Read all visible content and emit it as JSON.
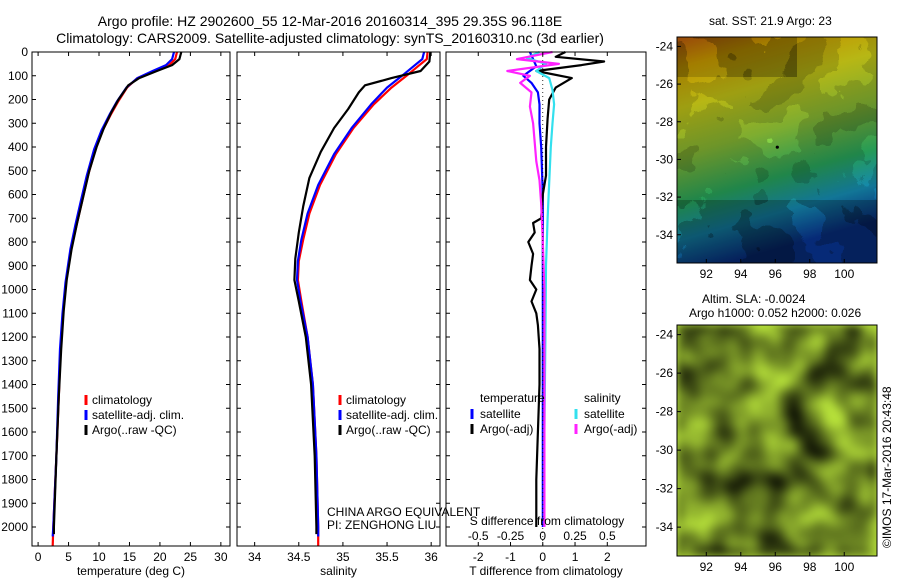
{
  "header": {
    "title_line1": "Argo profile: HZ 2902600_55 12-Mar-2016 20160314_395 29.35S 96.118E",
    "title_line2": "Climatology: CARS2009. Satellite-adjusted climatology: synTS_20160310.nc (3d earlier)"
  },
  "colors": {
    "climatology": "#ff0000",
    "satellite": "#0000ff",
    "argo": "#000000",
    "sat_salinity": "#33e0ee",
    "argo_salinity": "#ff22ff"
  },
  "chart_data": [
    {
      "type": "line",
      "xlabel": "temperature (deg C)",
      "xlim": [
        -1,
        31.5
      ],
      "ylim": [
        0,
        2080
      ],
      "xticks": [
        "0",
        "5",
        "10",
        "15",
        "20",
        "25",
        "30"
      ],
      "xtick_values": [
        0,
        5,
        10,
        15,
        20,
        25,
        30
      ],
      "yticks": [
        "0",
        "100",
        "200",
        "300",
        "400",
        "500",
        "600",
        "700",
        "800",
        "900",
        "1000",
        "1100",
        "1200",
        "1300",
        "1400",
        "1500",
        "1600",
        "1700",
        "1800",
        "1900",
        "2000"
      ],
      "ytick_values": [
        0,
        100,
        200,
        300,
        400,
        500,
        600,
        700,
        800,
        900,
        1000,
        1100,
        1200,
        1300,
        1400,
        1500,
        1600,
        1700,
        1800,
        1900,
        2000
      ],
      "legend": [
        "climatology",
        "satellite-adj. clim.",
        "Argo(..raw -QC)"
      ],
      "series": [
        {
          "name": "climatology",
          "color": "#ff0000",
          "points": [
            [
              22.8,
              0
            ],
            [
              22.5,
              30
            ],
            [
              21.5,
              55
            ],
            [
              19,
              80
            ],
            [
              16.3,
              110
            ],
            [
              14.6,
              150
            ],
            [
              13.1,
              210
            ],
            [
              12,
              260
            ],
            [
              10.6,
              330
            ],
            [
              9.4,
              410
            ],
            [
              8.2,
              520
            ],
            [
              7.2,
              630
            ],
            [
              6.3,
              730
            ],
            [
              5.4,
              830
            ],
            [
              4.6,
              970
            ],
            [
              4.1,
              1100
            ],
            [
              3.7,
              1250
            ],
            [
              3.4,
              1450
            ],
            [
              3.0,
              1700
            ],
            [
              2.5,
              2000
            ],
            [
              2.4,
              2080
            ]
          ]
        },
        {
          "name": "satellite-adj. clim.",
          "color": "#0000ff",
          "points": [
            [
              22.3,
              0
            ],
            [
              22,
              30
            ],
            [
              21,
              55
            ],
            [
              18.8,
              80
            ],
            [
              16.3,
              110
            ],
            [
              14.5,
              150
            ],
            [
              12.9,
              210
            ],
            [
              11.8,
              260
            ],
            [
              10.4,
              330
            ],
            [
              9.2,
              410
            ],
            [
              8,
              520
            ],
            [
              7,
              630
            ],
            [
              6.1,
              730
            ],
            [
              5.3,
              830
            ],
            [
              4.5,
              970
            ],
            [
              4,
              1100
            ],
            [
              3.6,
              1250
            ],
            [
              3.3,
              1450
            ],
            [
              3,
              1700
            ],
            [
              2.5,
              2000
            ],
            [
              2.4,
              2040
            ]
          ]
        },
        {
          "name": "Argo(..raw -QC)",
          "color": "#000000",
          "points": [
            [
              23.5,
              0
            ],
            [
              23.2,
              30
            ],
            [
              22,
              55
            ],
            [
              19.5,
              80
            ],
            [
              16.6,
              110
            ],
            [
              14.8,
              140
            ],
            [
              13.2,
              200
            ],
            [
              12.1,
              250
            ],
            [
              10.8,
              320
            ],
            [
              9.6,
              400
            ],
            [
              8.4,
              500
            ],
            [
              7.4,
              610
            ],
            [
              6.4,
              720
            ],
            [
              5.5,
              830
            ],
            [
              4.7,
              960
            ],
            [
              4.2,
              1090
            ],
            [
              3.8,
              1250
            ],
            [
              3.4,
              1450
            ],
            [
              3,
              1700
            ],
            [
              2.6,
              2000
            ],
            [
              2.6,
              2030
            ]
          ]
        }
      ]
    },
    {
      "type": "line",
      "xlabel": "salinity",
      "xlim": [
        33.8,
        36.1
      ],
      "ylim": [
        0,
        2080
      ],
      "xticks": [
        "34",
        "34.5",
        "35",
        "35.5",
        "36"
      ],
      "xtick_values": [
        34,
        34.5,
        35,
        35.5,
        36
      ],
      "legend": [
        "climatology",
        "satellite-adj. clim.",
        "Argo(..raw -QC)"
      ],
      "annotation_lines": [
        "CHINA ARGO EQUIVALENT",
        "PI: ZENGHONG LIU"
      ],
      "series": [
        {
          "name": "climatology",
          "color": "#ff0000",
          "points": [
            [
              35.96,
              0
            ],
            [
              35.95,
              30
            ],
            [
              35.85,
              60
            ],
            [
              35.72,
              100
            ],
            [
              35.55,
              150
            ],
            [
              35.35,
              220
            ],
            [
              35.12,
              320
            ],
            [
              34.92,
              430
            ],
            [
              34.74,
              560
            ],
            [
              34.62,
              680
            ],
            [
              34.55,
              790
            ],
            [
              34.5,
              880
            ],
            [
              34.49,
              960
            ],
            [
              34.53,
              1050
            ],
            [
              34.6,
              1200
            ],
            [
              34.66,
              1400
            ],
            [
              34.7,
              1700
            ],
            [
              34.72,
              2000
            ],
            [
              34.72,
              2080
            ]
          ]
        },
        {
          "name": "satellite-adj. clim.",
          "color": "#0000ff",
          "points": [
            [
              35.92,
              0
            ],
            [
              35.9,
              30
            ],
            [
              35.8,
              60
            ],
            [
              35.67,
              100
            ],
            [
              35.5,
              150
            ],
            [
              35.32,
              220
            ],
            [
              35.1,
              320
            ],
            [
              34.9,
              430
            ],
            [
              34.72,
              560
            ],
            [
              34.6,
              680
            ],
            [
              34.53,
              790
            ],
            [
              34.49,
              880
            ],
            [
              34.48,
              960
            ],
            [
              34.52,
              1050
            ],
            [
              34.6,
              1200
            ],
            [
              34.66,
              1400
            ],
            [
              34.7,
              1700
            ],
            [
              34.72,
              2000
            ],
            [
              34.72,
              2040
            ]
          ]
        },
        {
          "name": "Argo(..raw -QC)",
          "color": "#000000",
          "points": [
            [
              35.99,
              0
            ],
            [
              35.98,
              40
            ],
            [
              35.88,
              80
            ],
            [
              35.55,
              110
            ],
            [
              35.25,
              140
            ],
            [
              35.18,
              170
            ],
            [
              35.06,
              240
            ],
            [
              34.9,
              320
            ],
            [
              34.75,
              420
            ],
            [
              34.62,
              530
            ],
            [
              34.55,
              650
            ],
            [
              34.5,
              760
            ],
            [
              34.46,
              870
            ],
            [
              34.45,
              960
            ],
            [
              34.5,
              1050
            ],
            [
              34.58,
              1200
            ],
            [
              34.64,
              1400
            ],
            [
              34.68,
              1700
            ],
            [
              34.7,
              2000
            ],
            [
              34.7,
              2030
            ]
          ]
        }
      ]
    },
    {
      "type": "line",
      "xlabel": "T difference from climatology",
      "top_label": "S difference from climatology",
      "xlim": [
        -3,
        3.2
      ],
      "ylim": [
        0,
        2080
      ],
      "xticks": [
        "-2",
        "-1",
        "0",
        "1",
        "2"
      ],
      "xtick_values": [
        -2,
        -1,
        0,
        1,
        2
      ],
      "top_ticks": [
        "-0.5",
        "-0.25",
        "0",
        "0.25",
        "0.5"
      ],
      "top_tick_values": [
        -2,
        -1,
        0,
        1,
        2
      ],
      "legend_groups": [
        {
          "title": "temperature",
          "items": [
            "satellite",
            "Argo(-adj)"
          ]
        },
        {
          "title": "salinity",
          "items": [
            "satellite",
            "Argo(-adj)"
          ]
        }
      ],
      "series": [
        {
          "name": "temperature satellite",
          "color": "#0000ff",
          "points": [
            [
              -0.4,
              0
            ],
            [
              -0.3,
              30
            ],
            [
              -0.2,
              60
            ],
            [
              -0.6,
              100
            ],
            [
              -0.35,
              130
            ],
            [
              -0.15,
              170
            ],
            [
              -0.1,
              220
            ],
            [
              -0.1,
              300
            ],
            [
              -0.05,
              400
            ],
            [
              0,
              600
            ],
            [
              0,
              900
            ],
            [
              0,
              1200
            ],
            [
              0,
              1600
            ],
            [
              0,
              2000
            ]
          ]
        },
        {
          "name": "temperature Argo(-adj)",
          "color": "#000000",
          "points": [
            [
              0.7,
              0
            ],
            [
              0.4,
              20
            ],
            [
              1.9,
              40
            ],
            [
              1.2,
              55
            ],
            [
              -0.2,
              80
            ],
            [
              0.9,
              110
            ],
            [
              0.4,
              150
            ],
            [
              0.2,
              200
            ],
            [
              0.15,
              280
            ],
            [
              0.1,
              400
            ],
            [
              0.1,
              520
            ],
            [
              0,
              600
            ],
            [
              -0.05,
              700
            ],
            [
              -0.3,
              720
            ],
            [
              -0.25,
              760
            ],
            [
              -0.45,
              800
            ],
            [
              -0.3,
              850
            ],
            [
              -0.35,
              900
            ],
            [
              -0.4,
              960
            ],
            [
              -0.2,
              1000
            ],
            [
              -0.35,
              1050
            ],
            [
              -0.2,
              1100
            ],
            [
              -0.15,
              1150
            ],
            [
              -0.1,
              1250
            ],
            [
              -0.1,
              1400
            ],
            [
              -0.15,
              1600
            ],
            [
              -0.2,
              1800
            ],
            [
              -0.2,
              2000
            ]
          ]
        },
        {
          "name": "salinity satellite",
          "color": "#33e0ee",
          "points": [
            [
              -0.1,
              0
            ],
            [
              -0.5,
              25
            ],
            [
              0.1,
              50
            ],
            [
              -0.2,
              80
            ],
            [
              0.2,
              110
            ],
            [
              0.3,
              160
            ],
            [
              0.35,
              220
            ],
            [
              0.3,
              300
            ],
            [
              0.25,
              400
            ],
            [
              0.2,
              550
            ],
            [
              0.15,
              700
            ],
            [
              0.1,
              900
            ],
            [
              0.08,
              1200
            ],
            [
              0.05,
              1600
            ],
            [
              0.05,
              2000
            ]
          ]
        },
        {
          "name": "salinity Argo(-adj)",
          "color": "#ff22ff",
          "points": [
            [
              0.3,
              0
            ],
            [
              -0.8,
              30
            ],
            [
              0.5,
              50
            ],
            [
              -1.1,
              80
            ],
            [
              -0.4,
              100
            ],
            [
              -0.7,
              130
            ],
            [
              -0.35,
              170
            ],
            [
              -0.4,
              230
            ],
            [
              -0.3,
              300
            ],
            [
              -0.25,
              380
            ],
            [
              -0.2,
              460
            ],
            [
              -0.1,
              540
            ],
            [
              -0.05,
              640
            ],
            [
              0,
              800
            ],
            [
              0.05,
              1000
            ],
            [
              0.05,
              1300
            ],
            [
              0.05,
              1700
            ],
            [
              0.05,
              2000
            ]
          ]
        }
      ]
    },
    {
      "type": "heatmap",
      "title": "sat. SST: 21.9 Argo: 23",
      "xticks": [
        "92",
        "94",
        "96",
        "98",
        "100"
      ],
      "xtick_values": [
        92,
        94,
        96,
        98,
        100
      ],
      "yticks": [
        "-24",
        "-26",
        "-28",
        "-30",
        "-32",
        "-34"
      ],
      "ytick_values": [
        -24,
        -26,
        -28,
        -30,
        -32,
        -34
      ],
      "xlim": [
        90.3,
        101.9
      ],
      "ylim": [
        -35.5,
        -23.5
      ],
      "colormap": "jet",
      "argo_position": [
        96.118,
        -29.35
      ]
    },
    {
      "type": "heatmap",
      "title_line1": "Altim. SLA: -0.0024",
      "title_line2": "Argo h1000: 0.052 h2000: 0.026",
      "xticks": [
        "92",
        "94",
        "96",
        "98",
        "100"
      ],
      "xtick_values": [
        92,
        94,
        96,
        98,
        100
      ],
      "yticks": [
        "-24",
        "-26",
        "-28",
        "-30",
        "-32",
        "-34"
      ],
      "ytick_values": [
        -24,
        -26,
        -28,
        -30,
        -32,
        -34
      ],
      "xlim": [
        90.3,
        101.9
      ],
      "ylim": [
        -35.5,
        -23.5
      ],
      "colormap": "jet"
    }
  ],
  "footer": {
    "credit": "©IMOS 17-Mar-2016 20:43:48"
  }
}
